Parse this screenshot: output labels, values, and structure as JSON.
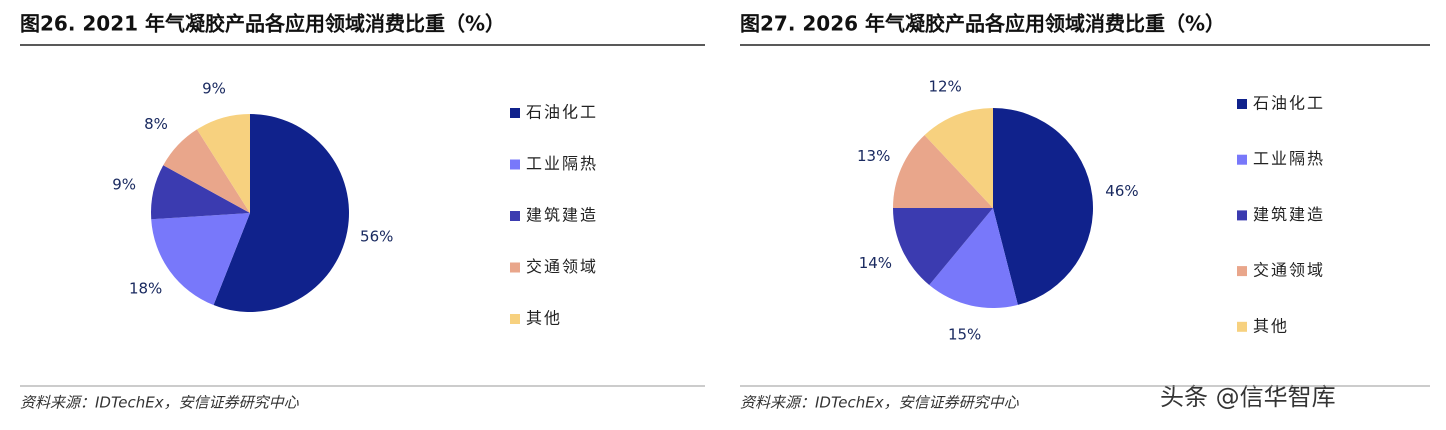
{
  "chart_data": [
    {
      "type": "pie",
      "title": "图26. 2021 年气凝胶产品各应用领域消费比重（%）",
      "categories": [
        "石油化工",
        "工业隔热",
        "建筑建造",
        "交通领域",
        "其他"
      ],
      "values": [
        56,
        18,
        9,
        8,
        9
      ],
      "value_labels": [
        "56%",
        "18%",
        "9%",
        "8%",
        "9%"
      ],
      "colors": [
        "#10228c",
        "#7878fa",
        "#3b3bb0",
        "#e9a68b",
        "#f7d17f"
      ],
      "source": "资料来源：IDTechEx，安信证券研究中心"
    },
    {
      "type": "pie",
      "title": "图27. 2026 年气凝胶产品各应用领域消费比重（%）",
      "categories": [
        "石油化工",
        "工业隔热",
        "建筑建造",
        "交通领域",
        "其他"
      ],
      "values": [
        46,
        15,
        14,
        13,
        12
      ],
      "value_labels": [
        "46%",
        "15%",
        "14%",
        "13%",
        "12%"
      ],
      "colors": [
        "#10228c",
        "#7878fa",
        "#3b3bb0",
        "#e9a68b",
        "#f7d17f"
      ],
      "source": "资料来源：IDTechEx，安信证券研究中心"
    }
  ],
  "watermark": "头条 @信华智库"
}
